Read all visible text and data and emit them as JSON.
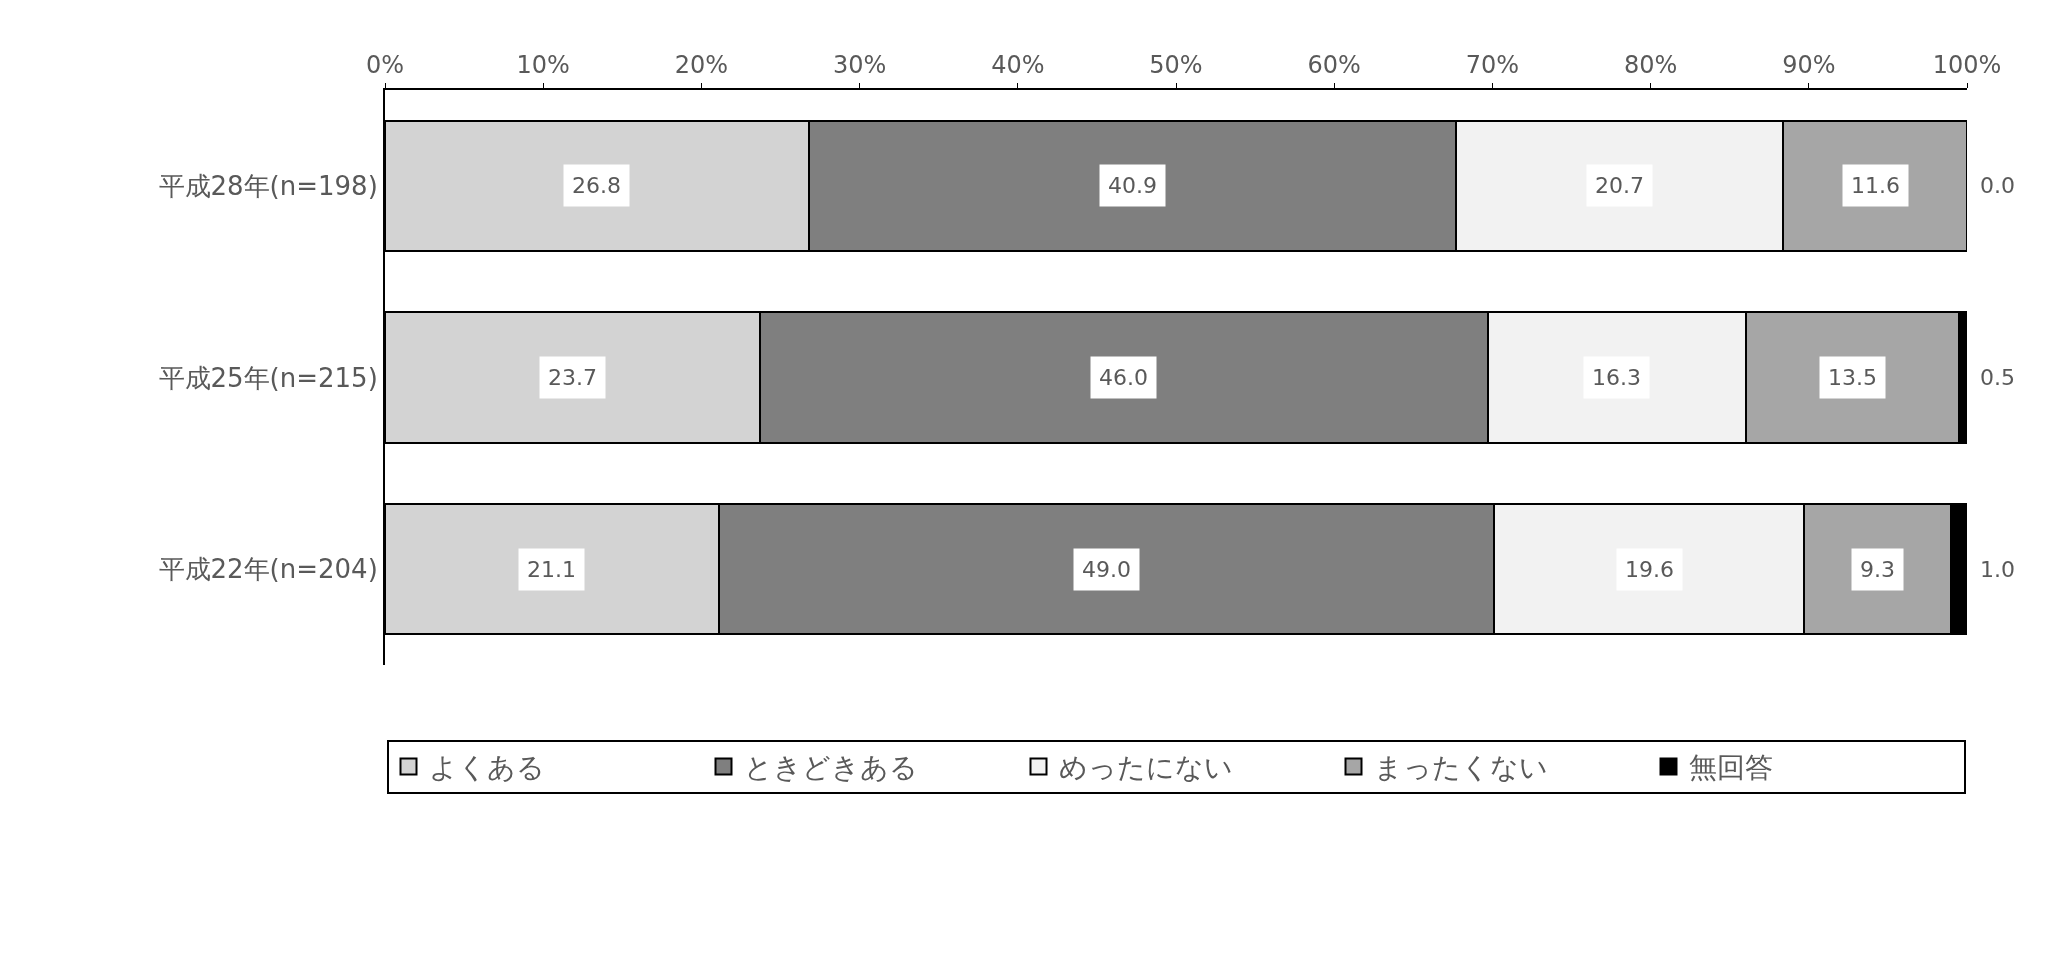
{
  "chart_data": {
    "type": "bar",
    "orientation": "horizontal",
    "stacked": true,
    "categories": [
      "平成28年(n=198)",
      "平成25年(n=215)",
      "平成22年(n=204)"
    ],
    "series": [
      {
        "name": "よくある",
        "color": "#d3d3d3",
        "values": [
          26.8,
          23.7,
          21.1
        ],
        "value_labels": [
          "26.8",
          "23.7",
          "21.1"
        ]
      },
      {
        "name": "ときどきある",
        "color": "#7f7f7f",
        "values": [
          40.9,
          46.0,
          49.0
        ],
        "value_labels": [
          "40.9",
          "46.0",
          "49.0"
        ]
      },
      {
        "name": "めったにない",
        "color": "#f2f2f2",
        "values": [
          20.7,
          16.3,
          19.6
        ],
        "value_labels": [
          "20.7",
          "16.3",
          "19.6"
        ]
      },
      {
        "name": "まったくない",
        "color": "#a6a6a6",
        "values": [
          11.6,
          13.5,
          9.3
        ],
        "value_labels": [
          "11.6",
          "13.5",
          "9.3"
        ]
      },
      {
        "name": "無回答",
        "color": "#000000",
        "values": [
          0.0,
          0.5,
          1.0
        ],
        "value_labels": [
          "0.0",
          "0.5",
          "1.0"
        ]
      }
    ],
    "xlim": [
      0,
      100
    ],
    "xticks": [
      {
        "value": 0,
        "label": "0%"
      },
      {
        "value": 10,
        "label": "10%"
      },
      {
        "value": 20,
        "label": "20%"
      },
      {
        "value": 30,
        "label": "30%"
      },
      {
        "value": 40,
        "label": "40%"
      },
      {
        "value": 50,
        "label": "50%"
      },
      {
        "value": 60,
        "label": "60%"
      },
      {
        "value": 70,
        "label": "70%"
      },
      {
        "value": 80,
        "label": "80%"
      },
      {
        "value": 90,
        "label": "90%"
      },
      {
        "value": 100,
        "label": "100%"
      }
    ],
    "legend": "bottom"
  }
}
